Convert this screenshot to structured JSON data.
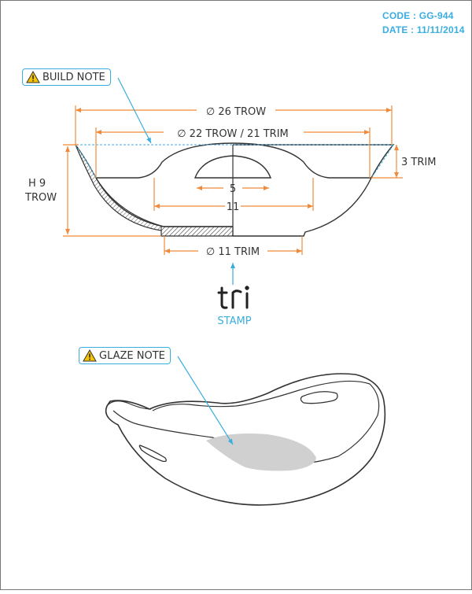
{
  "header": {
    "code": "CODE : GG-944",
    "date": "DATE : 11/11/2014"
  },
  "notes": {
    "build": "BUILD NOTE",
    "glaze": "GLAZE NOTE"
  },
  "dimensions": {
    "outer_diameter": "∅ 26 TROW",
    "inner_diameter": "∅ 22 TROW / 21 TRIM",
    "trim_height": "3 TRIM",
    "height_line1": "H 9",
    "height_line2": "TROW",
    "handle_width": "5",
    "bowl_width": "11",
    "foot_diameter": "∅ 11 TRIM"
  },
  "stamp": {
    "mark": "tri",
    "label": "STAMP"
  },
  "colors": {
    "accent": "#3aaee0",
    "line": "#333333",
    "dim": "#f08a3a",
    "glaze": "#d0d0d0"
  }
}
